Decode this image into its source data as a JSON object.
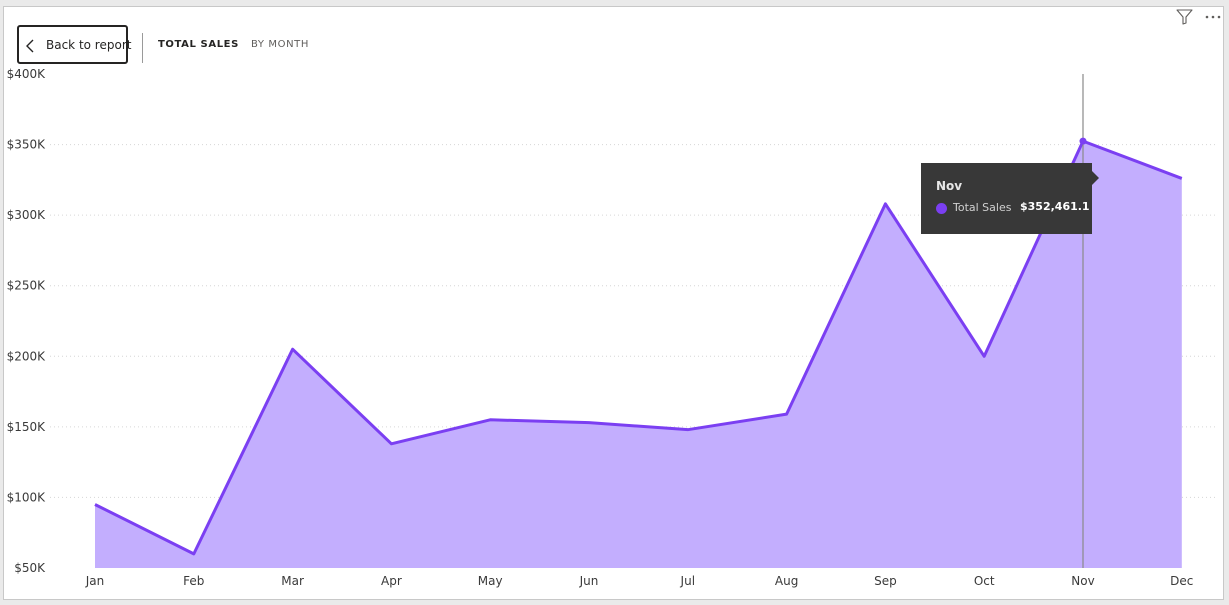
{
  "header": {
    "back_label": "Back to report",
    "crumbs": [
      "TOTAL SALES",
      "BY MONTH"
    ]
  },
  "icons": {
    "filter": "filter-icon",
    "more": "more-options-icon",
    "back": "chevron-left-icon"
  },
  "colors": {
    "line": "#7b3ff2",
    "fill": "#c3aefe",
    "hover_line": "#8a8a8a",
    "tooltip_bg": "#383838"
  },
  "tooltip": {
    "title": "Nov",
    "series": "Total Sales",
    "value": "$352,461.1"
  },
  "chart_data": {
    "type": "area",
    "categories": [
      "Jan",
      "Feb",
      "Mar",
      "Apr",
      "May",
      "Jun",
      "Jul",
      "Aug",
      "Sep",
      "Oct",
      "Nov",
      "Dec"
    ],
    "series": [
      {
        "name": "Total Sales",
        "values": [
          95000,
          60000,
          205000,
          138000,
          155000,
          153000,
          148000,
          159000,
          308000,
          200000,
          352461.1,
          326000
        ]
      }
    ],
    "yticks": [
      "$50K",
      "$100K",
      "$150K",
      "$200K",
      "$250K",
      "$300K",
      "$350K",
      "$400K"
    ],
    "ylim": [
      50000,
      400000
    ],
    "grid": true,
    "hover_category": "Nov"
  }
}
